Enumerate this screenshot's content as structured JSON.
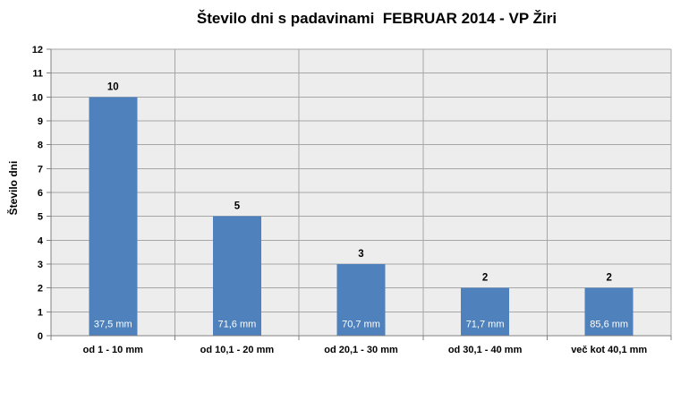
{
  "chart_data": {
    "type": "bar",
    "title": "Število dni s padavinami  FEBRUAR 2014 - VP Žiri",
    "xlabel": "",
    "ylabel": "Število dni",
    "categories": [
      "od 1 - 10 mm",
      "od 10,1 - 20 mm",
      "od 20,1 - 30 mm",
      "od 30,1 - 40 mm",
      "več kot 40,1 mm"
    ],
    "values": [
      10,
      5,
      3,
      2,
      2
    ],
    "bar_inner_labels": [
      "37,5 mm",
      "71,6 mm",
      "70,7 mm",
      "71,7 mm",
      "85,6 mm"
    ],
    "value_labels": [
      "10",
      "5",
      "3",
      "2",
      "2"
    ],
    "ytick_labels": [
      "0",
      "1",
      "2",
      "3",
      "4",
      "5",
      "6",
      "7",
      "8",
      "9",
      "10",
      "11",
      "12"
    ],
    "ylim": [
      0,
      12
    ],
    "ytick_step": 1,
    "grid": true,
    "legend_position": "none",
    "colors": {
      "bar": "#4F81BD",
      "plot_background": "#EDEDED",
      "gridline": "#A6A6A6",
      "axis_line": "#808080",
      "bar_inner_label_text": "#FFFFFF",
      "value_label_text": "#000000",
      "tick_label_text": "#000000",
      "title_text": "#000000",
      "page_background": "#FFFFFF"
    }
  }
}
